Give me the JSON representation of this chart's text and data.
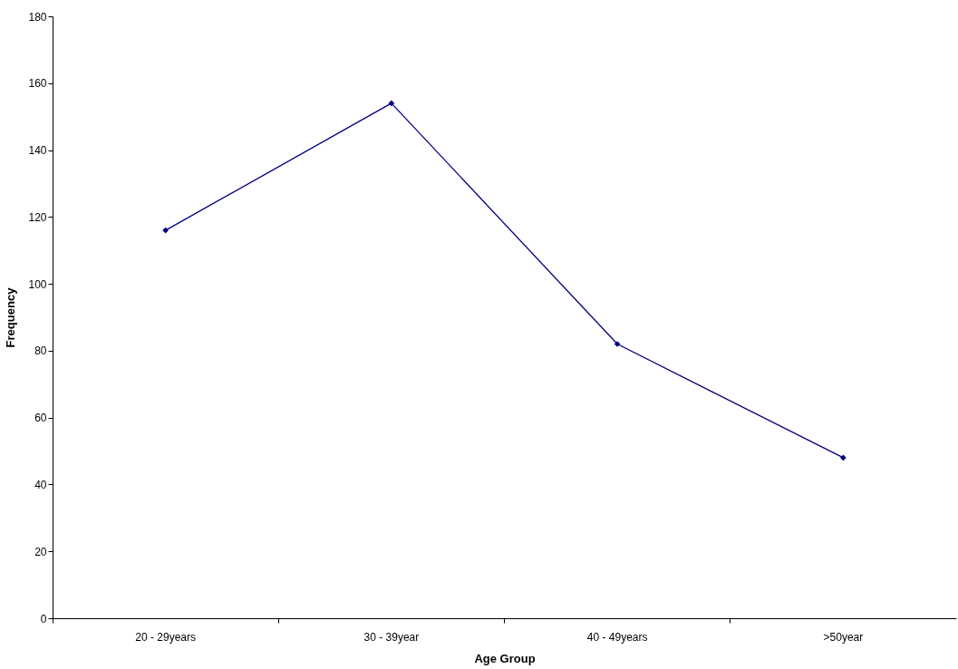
{
  "chart_data": {
    "type": "line",
    "xlabel": "Age Group",
    "ylabel": "Frequency",
    "categories": [
      "20 - 29years",
      "30 - 39year",
      "40 - 49years",
      ">50year"
    ],
    "series": [
      {
        "color": "#000080",
        "values": [
          116,
          154,
          82,
          48
        ]
      }
    ],
    "ylim": [
      0,
      180
    ],
    "yticks": [
      0,
      20,
      40,
      60,
      80,
      100,
      120,
      140,
      160,
      180
    ],
    "marker": "diamond",
    "line_style": "solid",
    "grid": false
  }
}
